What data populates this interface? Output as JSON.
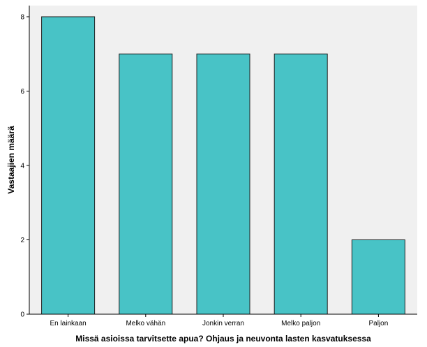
{
  "chart_data": {
    "type": "bar",
    "categories": [
      "En lainkaan",
      "Melko vähän",
      "Jonkin verran",
      "Melko paljon",
      "Paljon"
    ],
    "values": [
      8,
      7,
      7,
      7,
      2
    ],
    "title": "",
    "xlabel": "Missä asioissa tarvitsette apua? Ohjaus ja neuvonta lasten kasvatuksessa",
    "ylabel": "Vastaajien määrä",
    "ylim": [
      0,
      8.3
    ],
    "yticks": [
      0,
      2,
      4,
      6,
      8
    ],
    "grid": false,
    "legend": "none",
    "colors": {
      "bar_fill": "#48c3c6",
      "bar_stroke": "#1f1f1f",
      "plot_background": "#f0f0f0",
      "axis": "#000000"
    }
  }
}
